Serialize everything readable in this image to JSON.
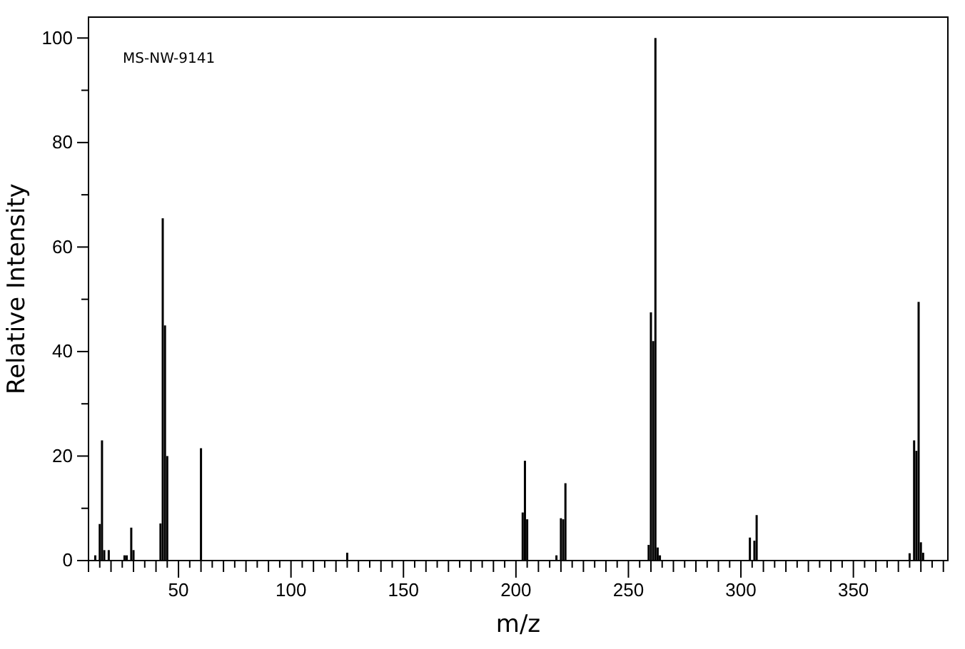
{
  "chart_data": {
    "type": "bar",
    "xlabel": "m/z",
    "ylabel": "Relative Intensity",
    "annotations": [
      "MS-NW-9141"
    ],
    "x": [
      13,
      15,
      16,
      17,
      19,
      26,
      27,
      29,
      30,
      42,
      43,
      44,
      45,
      60,
      125,
      203,
      204,
      205,
      218,
      220,
      221,
      222,
      259,
      260,
      261,
      262,
      263,
      264,
      304,
      306,
      307,
      375,
      377,
      378,
      379,
      380,
      381
    ],
    "values": [
      1,
      7,
      23,
      2,
      2,
      1,
      1,
      6.3,
      2,
      7.1,
      65.5,
      45,
      20,
      21.5,
      1.5,
      9.2,
      19.1,
      7.9,
      1,
      8.1,
      7.9,
      14.8,
      3,
      47.5,
      42,
      100,
      2.5,
      1,
      4.4,
      3.8,
      8.7,
      1.4,
      23,
      21,
      49.5,
      3.5,
      1.5
    ],
    "color": "#000000",
    "xlim": [
      10,
      392
    ],
    "xticks": [
      {
        "value": 10,
        "label": null
      },
      {
        "value": 15,
        "label": null
      },
      {
        "value": 20,
        "label": null
      },
      {
        "value": 25,
        "label": null
      },
      {
        "value": 30,
        "label": null
      },
      {
        "value": 35,
        "label": null
      },
      {
        "value": 40,
        "label": null
      },
      {
        "value": 45,
        "label": null
      },
      50,
      {
        "value": 55,
        "label": null
      },
      {
        "value": 60,
        "label": null
      },
      {
        "value": 65,
        "label": null
      },
      {
        "value": 70,
        "label": null
      },
      {
        "value": 75,
        "label": null
      },
      {
        "value": 80,
        "label": null
      },
      {
        "value": 85,
        "label": null
      },
      {
        "value": 90,
        "label": null
      },
      {
        "value": 95,
        "label": null
      },
      100,
      {
        "value": 105,
        "label": null
      },
      {
        "value": 110,
        "label": null
      },
      {
        "value": 115,
        "label": null
      },
      {
        "value": 120,
        "label": null
      },
      {
        "value": 125,
        "label": null
      },
      {
        "value": 130,
        "label": null
      },
      {
        "value": 135,
        "label": null
      },
      {
        "value": 140,
        "label": null
      },
      {
        "value": 145,
        "label": null
      },
      150,
      {
        "value": 155,
        "label": null
      },
      {
        "value": 160,
        "label": null
      },
      {
        "value": 165,
        "label": null
      },
      {
        "value": 170,
        "label": null
      },
      {
        "value": 175,
        "label": null
      },
      {
        "value": 180,
        "label": null
      },
      {
        "value": 185,
        "label": null
      },
      {
        "value": 190,
        "label": null
      },
      {
        "value": 195,
        "label": null
      },
      200,
      {
        "value": 205,
        "label": null
      },
      {
        "value": 210,
        "label": null
      },
      {
        "value": 215,
        "label": null
      },
      {
        "value": 220,
        "label": null
      },
      {
        "value": 225,
        "label": null
      },
      {
        "value": 230,
        "label": null
      },
      {
        "value": 235,
        "label": null
      },
      {
        "value": 240,
        "label": null
      },
      {
        "value": 245,
        "label": null
      },
      250,
      {
        "value": 255,
        "label": null
      },
      {
        "value": 260,
        "label": null
      },
      {
        "value": 265,
        "label": null
      },
      {
        "value": 270,
        "label": null
      },
      {
        "value": 275,
        "label": null
      },
      {
        "value": 280,
        "label": null
      },
      {
        "value": 285,
        "label": null
      },
      {
        "value": 290,
        "label": null
      },
      {
        "value": 295,
        "label": null
      },
      300,
      {
        "value": 305,
        "label": null
      },
      {
        "value": 310,
        "label": null
      },
      {
        "value": 315,
        "label": null
      },
      {
        "value": 320,
        "label": null
      },
      {
        "value": 325,
        "label": null
      },
      {
        "value": 330,
        "label": null
      },
      {
        "value": 335,
        "label": null
      },
      {
        "value": 340,
        "label": null
      },
      {
        "value": 345,
        "label": null
      },
      350,
      {
        "value": 355,
        "label": null
      },
      {
        "value": 360,
        "label": null
      },
      {
        "value": 365,
        "label": null
      },
      {
        "value": 370,
        "label": null
      },
      {
        "value": 375,
        "label": null
      },
      {
        "value": 380,
        "label": null
      },
      {
        "value": 385,
        "label": null
      },
      {
        "value": 390,
        "label": null
      }
    ],
    "ylim": [
      0,
      104
    ],
    "yticks": [
      0,
      {
        "value": 10,
        "label": null
      },
      20,
      {
        "value": 30,
        "label": null
      },
      40,
      {
        "value": 50,
        "label": null
      },
      60,
      {
        "value": 70,
        "label": null
      },
      80,
      {
        "value": 90,
        "label": null
      },
      100
    ],
    "grid": false
  }
}
